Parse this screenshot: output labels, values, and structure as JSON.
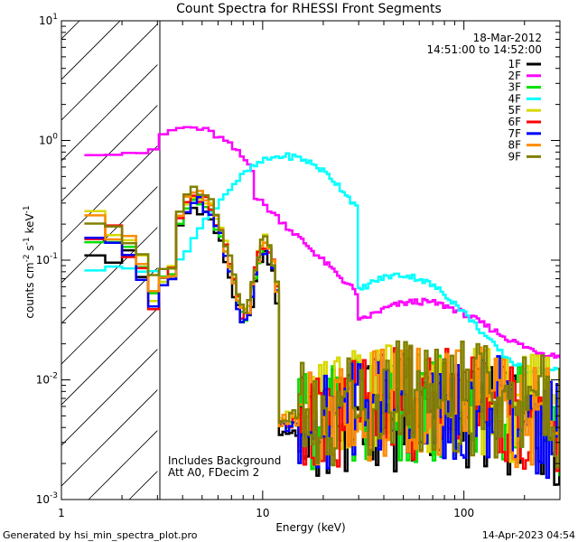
{
  "chart_data": {
    "type": "line",
    "title": "Count Spectra for RHESSI Front Segments",
    "xlabel": "Energy (keV)",
    "ylabel_parts": [
      "counts cm",
      "-2",
      " s",
      "-1",
      " keV",
      "-1"
    ],
    "xscale": "log",
    "yscale": "log",
    "xlim": [
      1,
      300
    ],
    "ylim": [
      0.001,
      10
    ],
    "x_ticks": [
      {
        "v": 1,
        "label": "1"
      },
      {
        "v": 10,
        "label": "10"
      },
      {
        "v": 100,
        "label": "100"
      }
    ],
    "y_ticks": [
      {
        "v": 0.001,
        "base": "10",
        "exp": "-3"
      },
      {
        "v": 0.01,
        "base": "10",
        "exp": "-2"
      },
      {
        "v": 0.1,
        "base": "10",
        "exp": "-1"
      },
      {
        "v": 1,
        "base": "10",
        "exp": "0"
      },
      {
        "v": 10,
        "base": "10",
        "exp": "1"
      }
    ],
    "date": "18-Mar-2012",
    "time_range": "14:51:00 to 14:52:00",
    "legend_position": "top-right",
    "hatched_region_x": [
      1,
      3
    ],
    "annotations": [
      "Includes Background",
      "Att A0, FDecim 2"
    ],
    "footer_left": "Generated by hsi_min_spectra_plot.pro",
    "footer_right": "14-Apr-2023 04:54",
    "series": [
      {
        "name": "1F",
        "color": "#000000",
        "shape": "main",
        "scale": 0.82,
        "noise": 0.0
      },
      {
        "name": "2F",
        "color": "#ff00ff",
        "shape": "det2"
      },
      {
        "name": "3F",
        "color": "#00e000",
        "shape": "main",
        "scale": 0.95,
        "noise": 0.35
      },
      {
        "name": "4F",
        "color": "#00ffff",
        "shape": "det4"
      },
      {
        "name": "5F",
        "color": "#d8d800",
        "shape": "main",
        "scale": 1.08,
        "noise": 0.7
      },
      {
        "name": "6F",
        "color": "#ff0000",
        "shape": "main",
        "scale": 1.0,
        "noise": 1.05
      },
      {
        "name": "7F",
        "color": "#0000ff",
        "shape": "main",
        "scale": 0.92,
        "noise": 1.4
      },
      {
        "name": "8F",
        "color": "#ff8c00",
        "shape": "main",
        "scale": 1.03,
        "noise": 1.75
      },
      {
        "name": "9F",
        "color": "#808000",
        "shape": "main",
        "scale": 1.12,
        "noise": 2.1
      }
    ]
  }
}
